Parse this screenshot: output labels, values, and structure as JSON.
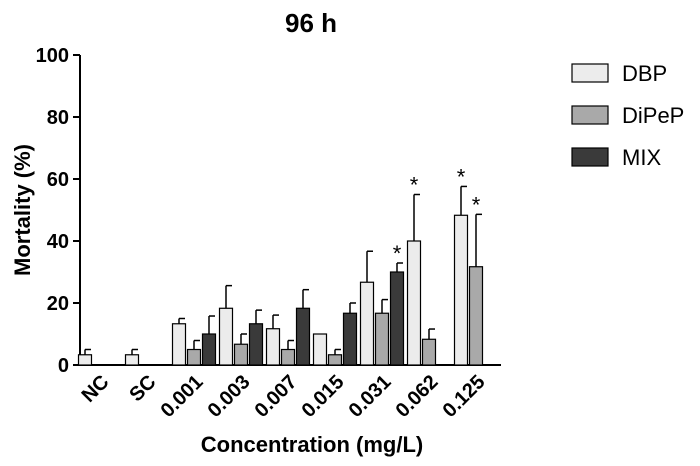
{
  "chart_data": {
    "type": "bar",
    "title": "96 h",
    "xlabel": "Concentration (mg/L)",
    "ylabel": "Mortality (%)",
    "ylim": [
      0,
      100
    ],
    "yticks": [
      "0",
      "20",
      "40",
      "60",
      "80",
      "100"
    ],
    "categories": [
      "NC",
      "SC",
      "0.001",
      "0.003",
      "0.007",
      "0.015",
      "0.031",
      "0.062",
      "0.125"
    ],
    "series": [
      {
        "name": "DBP",
        "color": "#ececec",
        "values": [
          3.3,
          3.3,
          13.3,
          18.3,
          11.7,
          10.0,
          26.7,
          40.0,
          48.3
        ],
        "errors": [
          1.7,
          1.7,
          1.7,
          7.3,
          4.4,
          0.0,
          10.0,
          15.0,
          9.3
        ],
        "significant": [
          false,
          false,
          false,
          false,
          false,
          false,
          false,
          true,
          true
        ]
      },
      {
        "name": "DiPeP",
        "color": "#a9a9a9",
        "values": [
          0,
          0,
          5.0,
          6.7,
          5.0,
          3.3,
          16.7,
          8.3,
          31.7
        ],
        "errors": [
          0,
          0,
          2.9,
          3.3,
          2.9,
          1.7,
          4.4,
          3.3,
          16.9
        ],
        "significant": [
          false,
          false,
          false,
          false,
          false,
          false,
          false,
          false,
          true
        ]
      },
      {
        "name": "MIX",
        "color": "#3a3a3a",
        "values": [
          0,
          0,
          10.0,
          13.3,
          18.3,
          16.7,
          30.0,
          null,
          null
        ],
        "errors": [
          0,
          0,
          5.8,
          4.4,
          6.0,
          3.3,
          2.9,
          null,
          null
        ],
        "significant": [
          false,
          false,
          false,
          false,
          false,
          false,
          true,
          false,
          false
        ]
      }
    ],
    "significance_marker": "*",
    "legend_position": "top-right"
  }
}
